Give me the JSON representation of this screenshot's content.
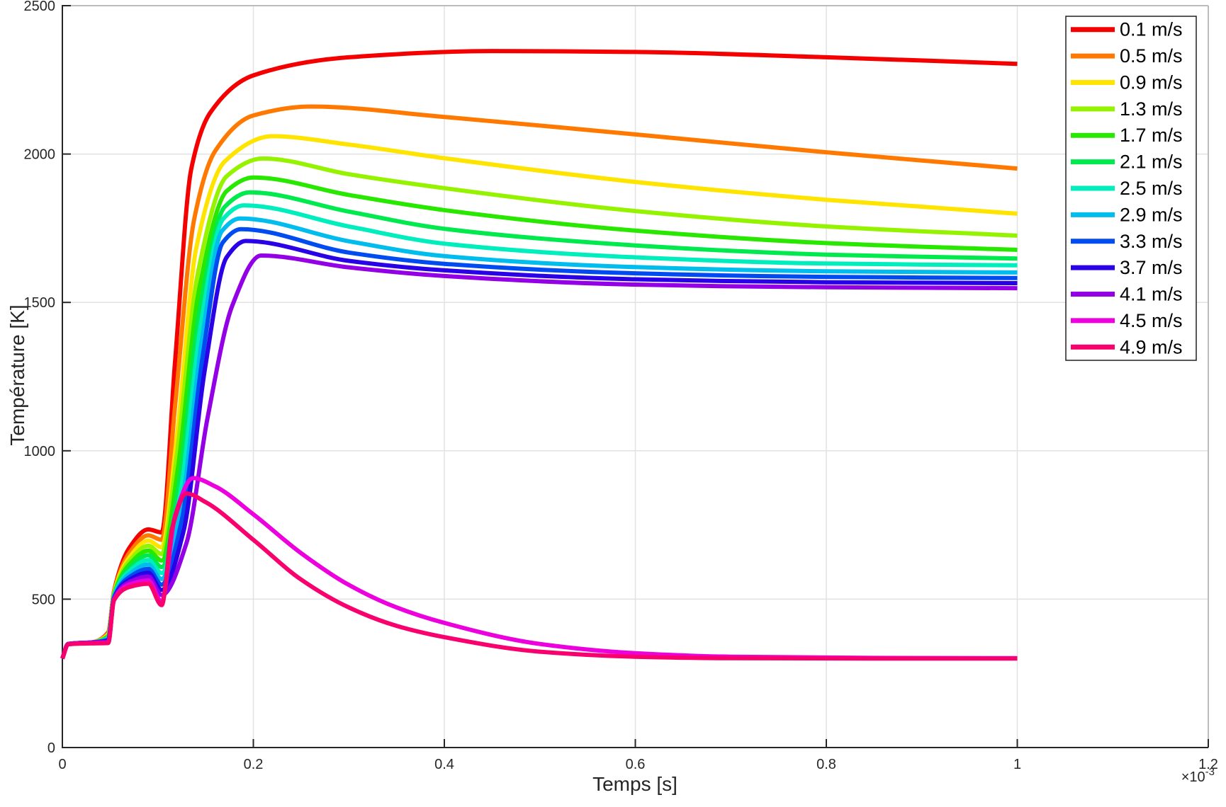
{
  "chart_data": {
    "type": "line",
    "title": "",
    "xlabel": "Temps [s]",
    "ylabel": "Température [K]",
    "x_multiplier": "×10⁻³",
    "xlim": [
      0,
      1.2
    ],
    "ylim": [
      0,
      2500
    ],
    "grid": true,
    "legend_position": "top-right",
    "xticks": {
      "values": [
        0,
        0.2,
        0.4,
        0.6,
        0.8,
        1,
        1.2
      ],
      "labels": [
        "0",
        "0.2",
        "0.4",
        "0.6",
        "0.8",
        "1",
        "1.2"
      ]
    },
    "yticks": {
      "values": [
        0,
        500,
        1000,
        1500,
        2000,
        2500
      ],
      "labels": [
        "0",
        "500",
        "1000",
        "1500",
        "2000",
        "2500"
      ]
    },
    "colors": {
      "axis": "#262626",
      "grid": "#e2e2e2",
      "box_light": "#ababab",
      "legend_border": "#202020"
    },
    "series": [
      {
        "label": "0.1 m/s",
        "color": "#f40000",
        "points": [
          [
            0,
            300
          ],
          [
            0.006,
            349
          ],
          [
            0.03,
            354
          ],
          [
            0.048,
            388
          ],
          [
            0.054,
            526
          ],
          [
            0.07,
            672
          ],
          [
            0.09,
            735
          ],
          [
            0.104,
            725
          ],
          [
            0.118,
            1300
          ],
          [
            0.135,
            1950
          ],
          [
            0.155,
            2140
          ],
          [
            0.2,
            2265
          ],
          [
            0.3,
            2326
          ],
          [
            0.45,
            2347
          ],
          [
            0.6,
            2344
          ],
          [
            0.8,
            2326
          ],
          [
            1,
            2304
          ]
        ]
      },
      {
        "label": "0.5 m/s",
        "color": "#ff7900",
        "points": [
          [
            0,
            300
          ],
          [
            0.006,
            349
          ],
          [
            0.03,
            354
          ],
          [
            0.048,
            385
          ],
          [
            0.054,
            523
          ],
          [
            0.07,
            655
          ],
          [
            0.09,
            715
          ],
          [
            0.104,
            700
          ],
          [
            0.118,
            1150
          ],
          [
            0.138,
            1780
          ],
          [
            0.16,
            2010
          ],
          [
            0.2,
            2130
          ],
          [
            0.26,
            2160
          ],
          [
            0.4,
            2125
          ],
          [
            0.6,
            2066
          ],
          [
            0.8,
            2006
          ],
          [
            1,
            1951
          ]
        ]
      },
      {
        "label": "0.9 m/s",
        "color": "#ffe400",
        "points": [
          [
            0,
            300
          ],
          [
            0.006,
            349
          ],
          [
            0.03,
            354
          ],
          [
            0.048,
            382
          ],
          [
            0.054,
            520
          ],
          [
            0.07,
            640
          ],
          [
            0.09,
            697
          ],
          [
            0.104,
            675
          ],
          [
            0.12,
            1050
          ],
          [
            0.14,
            1680
          ],
          [
            0.17,
            1975
          ],
          [
            0.22,
            2060
          ],
          [
            0.3,
            2032
          ],
          [
            0.4,
            1986
          ],
          [
            0.6,
            1906
          ],
          [
            0.8,
            1846
          ],
          [
            1,
            1799
          ]
        ]
      },
      {
        "label": "1.3 m/s",
        "color": "#95f300",
        "points": [
          [
            0,
            300
          ],
          [
            0.006,
            349
          ],
          [
            0.03,
            354
          ],
          [
            0.048,
            378
          ],
          [
            0.054,
            517
          ],
          [
            0.07,
            628
          ],
          [
            0.09,
            680
          ],
          [
            0.104,
            652
          ],
          [
            0.12,
            990
          ],
          [
            0.142,
            1600
          ],
          [
            0.172,
            1925
          ],
          [
            0.21,
            1985
          ],
          [
            0.3,
            1932
          ],
          [
            0.4,
            1885
          ],
          [
            0.6,
            1808
          ],
          [
            0.8,
            1756
          ],
          [
            1,
            1725
          ]
        ]
      },
      {
        "label": "1.7 m/s",
        "color": "#29e800",
        "points": [
          [
            0,
            300
          ],
          [
            0.006,
            349
          ],
          [
            0.03,
            354
          ],
          [
            0.048,
            375
          ],
          [
            0.054,
            514
          ],
          [
            0.07,
            616
          ],
          [
            0.09,
            664
          ],
          [
            0.104,
            630
          ],
          [
            0.121,
            940
          ],
          [
            0.143,
            1540
          ],
          [
            0.172,
            1875
          ],
          [
            0.2,
            1921
          ],
          [
            0.3,
            1862
          ],
          [
            0.4,
            1811
          ],
          [
            0.6,
            1742
          ],
          [
            0.8,
            1700
          ],
          [
            1,
            1677
          ]
        ]
      },
      {
        "label": "2.1 m/s",
        "color": "#00e94d",
        "points": [
          [
            0,
            300
          ],
          [
            0.006,
            349
          ],
          [
            0.03,
            354
          ],
          [
            0.048,
            372
          ],
          [
            0.054,
            512
          ],
          [
            0.07,
            605
          ],
          [
            0.09,
            648
          ],
          [
            0.104,
            608
          ],
          [
            0.122,
            890
          ],
          [
            0.144,
            1480
          ],
          [
            0.17,
            1822
          ],
          [
            0.196,
            1871
          ],
          [
            0.3,
            1806
          ],
          [
            0.4,
            1748
          ],
          [
            0.6,
            1692
          ],
          [
            0.8,
            1661
          ],
          [
            1,
            1648
          ]
        ]
      },
      {
        "label": "2.5 m/s",
        "color": "#00eebd",
        "points": [
          [
            0,
            300
          ],
          [
            0.006,
            349
          ],
          [
            0.03,
            354
          ],
          [
            0.048,
            369
          ],
          [
            0.054,
            509
          ],
          [
            0.07,
            594
          ],
          [
            0.09,
            632
          ],
          [
            0.104,
            588
          ],
          [
            0.123,
            845
          ],
          [
            0.145,
            1425
          ],
          [
            0.168,
            1780
          ],
          [
            0.19,
            1827
          ],
          [
            0.3,
            1756
          ],
          [
            0.4,
            1698
          ],
          [
            0.6,
            1652
          ],
          [
            0.8,
            1631
          ],
          [
            1,
            1625
          ]
        ]
      },
      {
        "label": "2.9 m/s",
        "color": "#00bdee",
        "points": [
          [
            0,
            300
          ],
          [
            0.006,
            349
          ],
          [
            0.03,
            354
          ],
          [
            0.048,
            366
          ],
          [
            0.054,
            507
          ],
          [
            0.07,
            584
          ],
          [
            0.09,
            617
          ],
          [
            0.104,
            568
          ],
          [
            0.124,
            800
          ],
          [
            0.146,
            1370
          ],
          [
            0.167,
            1740
          ],
          [
            0.186,
            1783
          ],
          [
            0.3,
            1706
          ],
          [
            0.4,
            1656
          ],
          [
            0.6,
            1619
          ],
          [
            0.8,
            1605
          ],
          [
            1,
            1601
          ]
        ]
      },
      {
        "label": "3.3 m/s",
        "color": "#004cf0",
        "points": [
          [
            0,
            300
          ],
          [
            0.006,
            349
          ],
          [
            0.03,
            354
          ],
          [
            0.048,
            363
          ],
          [
            0.054,
            504
          ],
          [
            0.07,
            574
          ],
          [
            0.09,
            602
          ],
          [
            0.104,
            549
          ],
          [
            0.125,
            765
          ],
          [
            0.147,
            1320
          ],
          [
            0.168,
            1702
          ],
          [
            0.187,
            1747
          ],
          [
            0.3,
            1668
          ],
          [
            0.4,
            1630
          ],
          [
            0.6,
            1598
          ],
          [
            0.8,
            1586
          ],
          [
            1,
            1582
          ]
        ]
      },
      {
        "label": "3.7 m/s",
        "color": "#2a00e6",
        "points": [
          [
            0,
            300
          ],
          [
            0.006,
            349
          ],
          [
            0.03,
            354
          ],
          [
            0.048,
            360
          ],
          [
            0.054,
            502
          ],
          [
            0.07,
            565
          ],
          [
            0.09,
            589
          ],
          [
            0.104,
            531
          ],
          [
            0.127,
            730
          ],
          [
            0.149,
            1270
          ],
          [
            0.172,
            1652
          ],
          [
            0.192,
            1707
          ],
          [
            0.3,
            1640
          ],
          [
            0.4,
            1608
          ],
          [
            0.6,
            1578
          ],
          [
            0.8,
            1568
          ],
          [
            1,
            1565
          ]
        ]
      },
      {
        "label": "4.1 m/s",
        "color": "#9400e6",
        "points": [
          [
            0,
            300
          ],
          [
            0.006,
            349
          ],
          [
            0.03,
            354
          ],
          [
            0.048,
            357
          ],
          [
            0.054,
            500
          ],
          [
            0.07,
            557
          ],
          [
            0.09,
            576
          ],
          [
            0.104,
            514
          ],
          [
            0.13,
            690
          ],
          [
            0.152,
            1110
          ],
          [
            0.178,
            1490
          ],
          [
            0.208,
            1658
          ],
          [
            0.3,
            1618
          ],
          [
            0.4,
            1589
          ],
          [
            0.6,
            1560
          ],
          [
            0.8,
            1551
          ],
          [
            1,
            1548
          ]
        ]
      },
      {
        "label": "4.5 m/s",
        "color": "#ec00dd",
        "points": [
          [
            0,
            300
          ],
          [
            0.006,
            348
          ],
          [
            0.03,
            352
          ],
          [
            0.048,
            354
          ],
          [
            0.054,
            498
          ],
          [
            0.07,
            549
          ],
          [
            0.09,
            563
          ],
          [
            0.104,
            492
          ],
          [
            0.118,
            780
          ],
          [
            0.137,
            908
          ],
          [
            0.16,
            880
          ],
          [
            0.2,
            786
          ],
          [
            0.25,
            655
          ],
          [
            0.3,
            548
          ],
          [
            0.35,
            472
          ],
          [
            0.4,
            420
          ],
          [
            0.5,
            349
          ],
          [
            0.6,
            318
          ],
          [
            0.7,
            306
          ],
          [
            0.85,
            302
          ],
          [
            1,
            301
          ]
        ]
      },
      {
        "label": "4.9 m/s",
        "color": "#f8006e",
        "points": [
          [
            0,
            300
          ],
          [
            0.006,
            348
          ],
          [
            0.03,
            351
          ],
          [
            0.048,
            352
          ],
          [
            0.054,
            496
          ],
          [
            0.07,
            541
          ],
          [
            0.09,
            552
          ],
          [
            0.104,
            480
          ],
          [
            0.115,
            740
          ],
          [
            0.13,
            856
          ],
          [
            0.15,
            827
          ],
          [
            0.2,
            700
          ],
          [
            0.25,
            566
          ],
          [
            0.3,
            472
          ],
          [
            0.35,
            410
          ],
          [
            0.4,
            372
          ],
          [
            0.5,
            323
          ],
          [
            0.6,
            306
          ],
          [
            0.7,
            301
          ],
          [
            0.85,
            300
          ],
          [
            1,
            300
          ]
        ]
      }
    ]
  }
}
